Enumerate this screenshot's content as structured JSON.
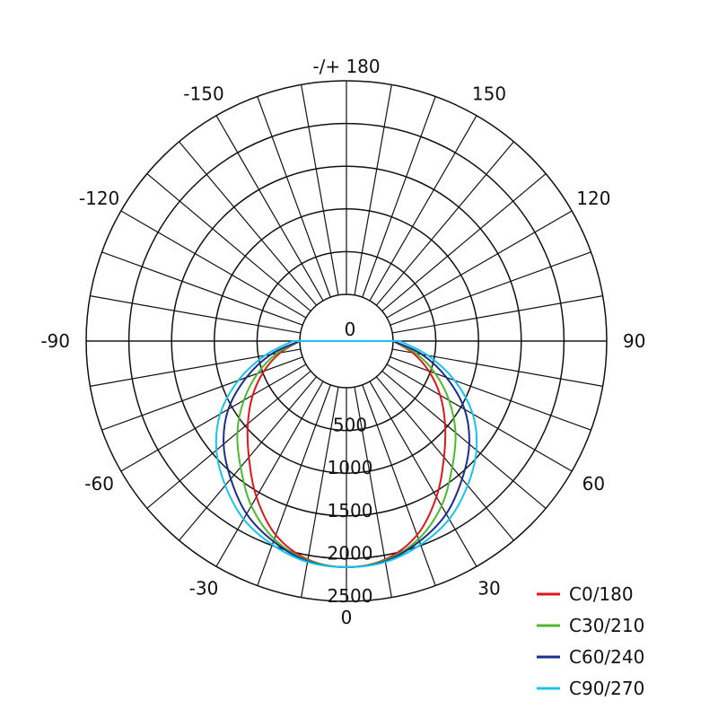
{
  "chart_data": {
    "type": "polar",
    "title": "",
    "radial_unit": "",
    "radial_ticks": [
      0,
      500,
      1000,
      1500,
      2000,
      2500
    ],
    "radial_tick_labels": [
      "0",
      "500",
      "1000",
      "1500",
      "2000",
      "2500"
    ],
    "radial_max": 2500,
    "angle_step_deg": 10,
    "angle_labels": [
      {
        "deg": 0,
        "text": "0"
      },
      {
        "deg": 30,
        "text": "30"
      },
      {
        "deg": 60,
        "text": "60"
      },
      {
        "deg": 90,
        "text": "90"
      },
      {
        "deg": 120,
        "text": "120"
      },
      {
        "deg": 150,
        "text": "150"
      },
      {
        "deg": 180,
        "text": "-/+ 180"
      },
      {
        "deg": -150,
        "text": "-150"
      },
      {
        "deg": -120,
        "text": "-120"
      },
      {
        "deg": -90,
        "text": "-90"
      },
      {
        "deg": -60,
        "text": "-60"
      },
      {
        "deg": -30,
        "text": "-30"
      }
    ],
    "legend_position": "bottom-right",
    "series": [
      {
        "name": "C0/180",
        "color": "#e0161b",
        "angles": [
          -90,
          -80,
          -70,
          -60,
          -50,
          -40,
          -30,
          -20,
          -10,
          0,
          10,
          20,
          30,
          40,
          50,
          60,
          70,
          80,
          90
        ],
        "values": [
          0,
          240,
          480,
          720,
          960,
          1230,
          1560,
          1870,
          2050,
          2100,
          2050,
          1870,
          1560,
          1230,
          960,
          720,
          480,
          240,
          0
        ]
      },
      {
        "name": "C30/210",
        "color": "#4cba2e",
        "angles": [
          -90,
          -80,
          -70,
          -60,
          -50,
          -40,
          -30,
          -20,
          -10,
          0,
          10,
          20,
          30,
          40,
          50,
          60,
          70,
          80,
          90
        ],
        "values": [
          0,
          280,
          560,
          840,
          1120,
          1380,
          1680,
          1920,
          2060,
          2100,
          2060,
          1920,
          1680,
          1380,
          1120,
          840,
          560,
          280,
          0
        ]
      },
      {
        "name": "C60/240",
        "color": "#1a2e8c",
        "angles": [
          -90,
          -80,
          -70,
          -60,
          -50,
          -40,
          -30,
          -20,
          -10,
          0,
          10,
          20,
          30,
          40,
          50,
          60,
          70,
          80,
          90
        ],
        "values": [
          0,
          350,
          700,
          1050,
          1330,
          1560,
          1790,
          1950,
          2070,
          2100,
          2070,
          1950,
          1790,
          1560,
          1330,
          1050,
          700,
          350,
          0
        ]
      },
      {
        "name": "C90/270",
        "color": "#18c4ee",
        "angles": [
          -90,
          -80,
          -70,
          -60,
          -50,
          -40,
          -30,
          -20,
          -10,
          0,
          10,
          20,
          30,
          40,
          50,
          60,
          70,
          80,
          90
        ],
        "values": [
          80,
          420,
          800,
          1160,
          1440,
          1660,
          1860,
          1990,
          2080,
          2100,
          2080,
          1990,
          1860,
          1660,
          1440,
          1160,
          800,
          420,
          80
        ]
      }
    ]
  }
}
